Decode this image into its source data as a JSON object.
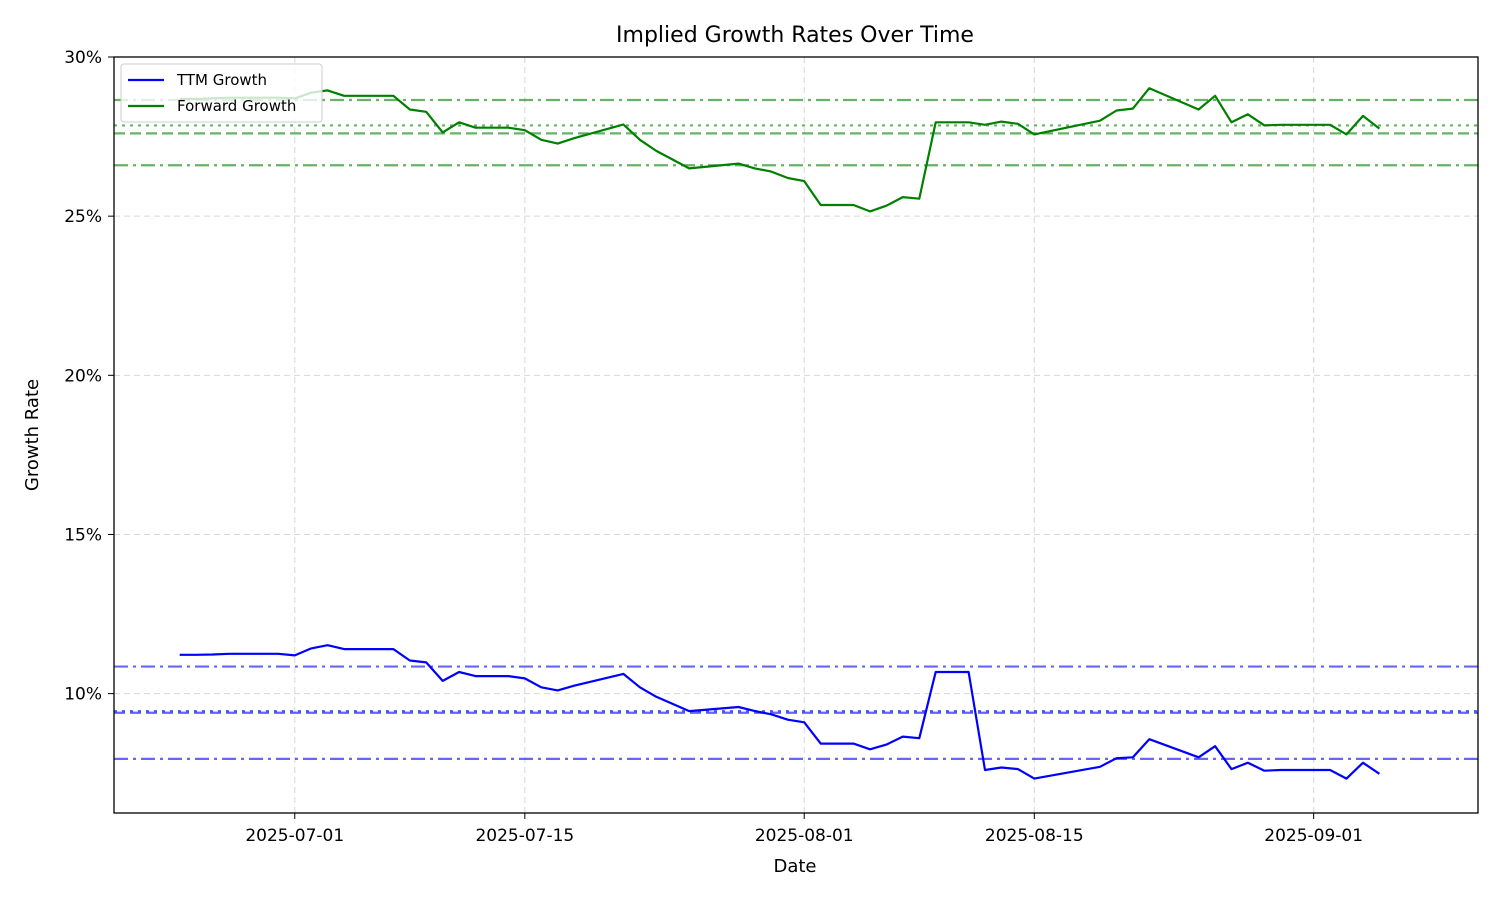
{
  "chart_data": {
    "type": "line",
    "title": "Implied Growth Rates Over Time",
    "xlabel": "Date",
    "ylabel": "Growth Rate",
    "xlim": [
      "2025-06-20",
      "2025-09-11"
    ],
    "ylim": [
      0.0625,
      0.3
    ],
    "grid": true,
    "legend_position": "top-left",
    "x_ticks": [
      "2025-07-01",
      "2025-07-15",
      "2025-08-01",
      "2025-08-15",
      "2025-09-01"
    ],
    "y_ticks": [
      {
        "value": 0.1,
        "label": "10%"
      },
      {
        "value": 0.15,
        "label": "15%"
      },
      {
        "value": 0.2,
        "label": "20%"
      },
      {
        "value": 0.25,
        "label": "25%"
      },
      {
        "value": 0.3,
        "label": "30%"
      }
    ],
    "series": [
      {
        "name": "TTM Growth",
        "color": "#0000ff",
        "points": [
          [
            "2025-06-24",
            0.1122
          ],
          [
            "2025-06-25",
            0.1122
          ],
          [
            "2025-06-26",
            0.1123
          ],
          [
            "2025-06-27",
            0.1125
          ],
          [
            "2025-06-30",
            0.1125
          ],
          [
            "2025-07-01",
            0.112
          ],
          [
            "2025-07-02",
            0.1142
          ],
          [
            "2025-07-03",
            0.1152
          ],
          [
            "2025-07-04",
            0.114
          ],
          [
            "2025-07-07",
            0.114
          ],
          [
            "2025-07-08",
            0.1104
          ],
          [
            "2025-07-09",
            0.1098
          ],
          [
            "2025-07-10",
            0.104
          ],
          [
            "2025-07-11",
            0.1068
          ],
          [
            "2025-07-12",
            0.1055
          ],
          [
            "2025-07-14",
            0.1055
          ],
          [
            "2025-07-15",
            0.1048
          ],
          [
            "2025-07-16",
            0.102
          ],
          [
            "2025-07-17",
            0.101
          ],
          [
            "2025-07-18",
            0.1025
          ],
          [
            "2025-07-21",
            0.1062
          ],
          [
            "2025-07-22",
            0.102
          ],
          [
            "2025-07-23",
            0.099
          ],
          [
            "2025-07-25",
            0.0945
          ],
          [
            "2025-07-28",
            0.0958
          ],
          [
            "2025-07-29",
            0.0945
          ],
          [
            "2025-07-30",
            0.0935
          ],
          [
            "2025-07-31",
            0.0918
          ],
          [
            "2025-08-01",
            0.091
          ],
          [
            "2025-08-02",
            0.0843
          ],
          [
            "2025-08-04",
            0.0843
          ],
          [
            "2025-08-05",
            0.0825
          ],
          [
            "2025-08-06",
            0.084
          ],
          [
            "2025-08-07",
            0.0865
          ],
          [
            "2025-08-08",
            0.086
          ],
          [
            "2025-08-09",
            0.1068
          ],
          [
            "2025-08-11",
            0.1068
          ],
          [
            "2025-08-12",
            0.076
          ],
          [
            "2025-08-13",
            0.0768
          ],
          [
            "2025-08-14",
            0.0763
          ],
          [
            "2025-08-15",
            0.0733
          ],
          [
            "2025-08-19",
            0.077
          ],
          [
            "2025-08-20",
            0.0797
          ],
          [
            "2025-08-21",
            0.08
          ],
          [
            "2025-08-22",
            0.0857
          ],
          [
            "2025-08-25",
            0.08
          ],
          [
            "2025-08-26",
            0.0835
          ],
          [
            "2025-08-27",
            0.0763
          ],
          [
            "2025-08-28",
            0.0783
          ],
          [
            "2025-08-29",
            0.0758
          ],
          [
            "2025-08-30",
            0.076
          ],
          [
            "2025-09-02",
            0.076
          ],
          [
            "2025-09-03",
            0.0733
          ],
          [
            "2025-09-04",
            0.0783
          ],
          [
            "2025-09-05",
            0.0748
          ]
        ],
        "reference_lines": [
          {
            "value": 0.1085,
            "style": "dashdot"
          },
          {
            "value": 0.0945,
            "style": "dotted"
          },
          {
            "value": 0.094,
            "style": "dashed"
          },
          {
            "value": 0.0795,
            "style": "dashdot"
          }
        ]
      },
      {
        "name": "Forward Growth",
        "color": "#008000",
        "points": [
          [
            "2025-06-24",
            0.2868
          ],
          [
            "2025-06-25",
            0.2868
          ],
          [
            "2025-06-26",
            0.287
          ],
          [
            "2025-06-27",
            0.2872
          ],
          [
            "2025-06-30",
            0.2872
          ],
          [
            "2025-07-01",
            0.287
          ],
          [
            "2025-07-02",
            0.2888
          ],
          [
            "2025-07-03",
            0.2895
          ],
          [
            "2025-07-04",
            0.2878
          ],
          [
            "2025-07-07",
            0.2878
          ],
          [
            "2025-07-08",
            0.2835
          ],
          [
            "2025-07-09",
            0.2828
          ],
          [
            "2025-07-10",
            0.2763
          ],
          [
            "2025-07-11",
            0.2795
          ],
          [
            "2025-07-12",
            0.2778
          ],
          [
            "2025-07-14",
            0.2778
          ],
          [
            "2025-07-15",
            0.277
          ],
          [
            "2025-07-16",
            0.274
          ],
          [
            "2025-07-17",
            0.2728
          ],
          [
            "2025-07-18",
            0.2745
          ],
          [
            "2025-07-21",
            0.2788
          ],
          [
            "2025-07-22",
            0.274
          ],
          [
            "2025-07-23",
            0.2705
          ],
          [
            "2025-07-25",
            0.265
          ],
          [
            "2025-07-28",
            0.2665
          ],
          [
            "2025-07-29",
            0.265
          ],
          [
            "2025-07-30",
            0.264
          ],
          [
            "2025-07-31",
            0.262
          ],
          [
            "2025-08-01",
            0.261
          ],
          [
            "2025-08-02",
            0.2535
          ],
          [
            "2025-08-04",
            0.2535
          ],
          [
            "2025-08-05",
            0.2515
          ],
          [
            "2025-08-06",
            0.2533
          ],
          [
            "2025-08-07",
            0.256
          ],
          [
            "2025-08-08",
            0.2555
          ],
          [
            "2025-08-09",
            0.2795
          ],
          [
            "2025-08-11",
            0.2795
          ],
          [
            "2025-08-12",
            0.2787
          ],
          [
            "2025-08-13",
            0.2797
          ],
          [
            "2025-08-14",
            0.279
          ],
          [
            "2025-08-15",
            0.2757
          ],
          [
            "2025-08-19",
            0.28
          ],
          [
            "2025-08-20",
            0.2832
          ],
          [
            "2025-08-21",
            0.2838
          ],
          [
            "2025-08-22",
            0.2902
          ],
          [
            "2025-08-25",
            0.2835
          ],
          [
            "2025-08-26",
            0.2878
          ],
          [
            "2025-08-27",
            0.2795
          ],
          [
            "2025-08-28",
            0.282
          ],
          [
            "2025-08-29",
            0.2785
          ],
          [
            "2025-08-30",
            0.2787
          ],
          [
            "2025-09-02",
            0.2787
          ],
          [
            "2025-09-03",
            0.2757
          ],
          [
            "2025-09-04",
            0.2815
          ],
          [
            "2025-09-05",
            0.2775
          ]
        ],
        "reference_lines": [
          {
            "value": 0.2865,
            "style": "dashdot"
          },
          {
            "value": 0.2785,
            "style": "dotted"
          },
          {
            "value": 0.276,
            "style": "dashed"
          },
          {
            "value": 0.266,
            "style": "dashdot"
          }
        ]
      }
    ]
  }
}
